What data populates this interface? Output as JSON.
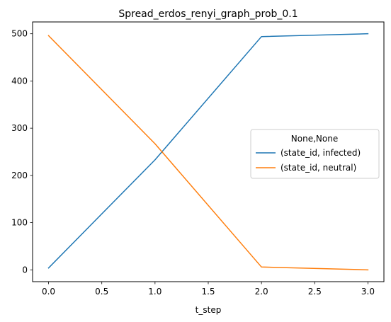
{
  "chart_data": {
    "type": "line",
    "title": "Spread_erdos_renyi_graph_prob_0.1",
    "xlabel": "t_step",
    "ylabel": "",
    "x": [
      0,
      1,
      2,
      3
    ],
    "xlim": [
      -0.15,
      3.15
    ],
    "ylim": [
      -25,
      525
    ],
    "xticks": [
      0.0,
      0.5,
      1.0,
      1.5,
      2.0,
      2.5,
      3.0
    ],
    "xtick_labels": [
      "0.0",
      "0.5",
      "1.0",
      "1.5",
      "2.0",
      "2.5",
      "3.0"
    ],
    "yticks": [
      0,
      100,
      200,
      300,
      400,
      500
    ],
    "ytick_labels": [
      "0",
      "100",
      "200",
      "300",
      "400",
      "500"
    ],
    "grid": false,
    "legend": {
      "title": "None,None",
      "placement": "center-right"
    },
    "series": [
      {
        "name": "(state_id, infected)",
        "color": "#1f77b4",
        "values": [
          4,
          233,
          494,
          500
        ]
      },
      {
        "name": "(state_id, neutral)",
        "color": "#ff7f0e",
        "values": [
          496,
          267,
          6,
          0
        ]
      }
    ]
  }
}
